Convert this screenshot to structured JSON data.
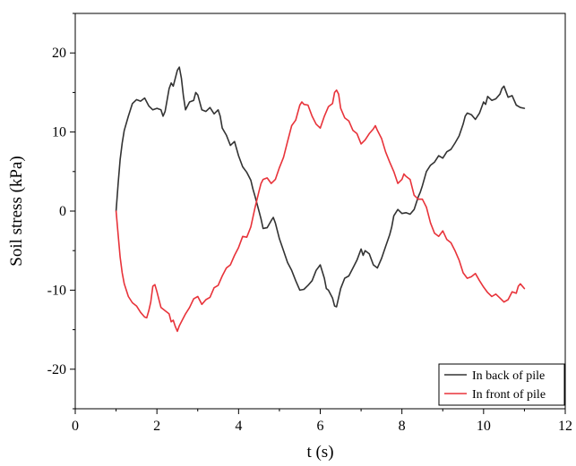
{
  "chart_data": {
    "type": "line",
    "xlabel": "t (s)",
    "ylabel": "Soil stress (kPa)",
    "xlim": [
      0,
      12
    ],
    "ylim": [
      -25,
      25
    ],
    "x_ticks": [
      "0",
      "2",
      "4",
      "6",
      "8",
      "10",
      "12"
    ],
    "y_ticks": [
      "-20",
      "-10",
      "0",
      "10",
      "20"
    ],
    "grid": false,
    "legend_position": "bottom-right",
    "series": [
      {
        "name": "In back of pile",
        "color": "#333333",
        "points": [
          [
            1.0,
            0.0
          ],
          [
            1.05,
            3.5
          ],
          [
            1.1,
            6.5
          ],
          [
            1.15,
            8.6
          ],
          [
            1.2,
            10.2
          ],
          [
            1.3,
            12.0
          ],
          [
            1.4,
            13.6
          ],
          [
            1.5,
            14.1
          ],
          [
            1.6,
            13.9
          ],
          [
            1.7,
            14.3
          ],
          [
            1.8,
            13.3
          ],
          [
            1.9,
            12.8
          ],
          [
            2.0,
            13.0
          ],
          [
            2.1,
            12.8
          ],
          [
            2.15,
            12.0
          ],
          [
            2.2,
            12.6
          ],
          [
            2.3,
            15.5
          ],
          [
            2.35,
            16.2
          ],
          [
            2.4,
            15.8
          ],
          [
            2.5,
            17.8
          ],
          [
            2.55,
            18.2
          ],
          [
            2.6,
            16.8
          ],
          [
            2.65,
            14.5
          ],
          [
            2.7,
            12.8
          ],
          [
            2.8,
            13.8
          ],
          [
            2.9,
            14.0
          ],
          [
            2.95,
            15.0
          ],
          [
            3.0,
            14.7
          ],
          [
            3.1,
            12.8
          ],
          [
            3.2,
            12.6
          ],
          [
            3.3,
            13.1
          ],
          [
            3.4,
            12.3
          ],
          [
            3.5,
            12.8
          ],
          [
            3.55,
            12.0
          ],
          [
            3.6,
            10.5
          ],
          [
            3.7,
            9.6
          ],
          [
            3.8,
            8.3
          ],
          [
            3.9,
            8.8
          ],
          [
            4.0,
            7.0
          ],
          [
            4.1,
            5.6
          ],
          [
            4.2,
            4.9
          ],
          [
            4.3,
            3.9
          ],
          [
            4.35,
            2.8
          ],
          [
            4.4,
            1.9
          ],
          [
            4.5,
            0.0
          ],
          [
            4.55,
            -1.0
          ],
          [
            4.6,
            -2.2
          ],
          [
            4.7,
            -2.1
          ],
          [
            4.8,
            -1.2
          ],
          [
            4.85,
            -0.8
          ],
          [
            4.9,
            -1.5
          ],
          [
            5.0,
            -3.5
          ],
          [
            5.1,
            -5.0
          ],
          [
            5.2,
            -6.5
          ],
          [
            5.3,
            -7.5
          ],
          [
            5.4,
            -8.8
          ],
          [
            5.5,
            -10.0
          ],
          [
            5.6,
            -9.9
          ],
          [
            5.7,
            -9.4
          ],
          [
            5.8,
            -8.8
          ],
          [
            5.9,
            -7.5
          ],
          [
            6.0,
            -6.8
          ],
          [
            6.1,
            -8.5
          ],
          [
            6.15,
            -9.8
          ],
          [
            6.2,
            -10.0
          ],
          [
            6.3,
            -11.0
          ],
          [
            6.35,
            -12.0
          ],
          [
            6.4,
            -12.1
          ],
          [
            6.5,
            -9.8
          ],
          [
            6.6,
            -8.5
          ],
          [
            6.7,
            -8.2
          ],
          [
            6.8,
            -7.2
          ],
          [
            6.9,
            -6.2
          ],
          [
            7.0,
            -4.8
          ],
          [
            7.05,
            -5.6
          ],
          [
            7.1,
            -5.0
          ],
          [
            7.2,
            -5.4
          ],
          [
            7.3,
            -6.8
          ],
          [
            7.4,
            -7.2
          ],
          [
            7.5,
            -6.0
          ],
          [
            7.6,
            -4.5
          ],
          [
            7.7,
            -3.0
          ],
          [
            7.75,
            -2.0
          ],
          [
            7.8,
            -0.6
          ],
          [
            7.9,
            0.2
          ],
          [
            8.0,
            -0.3
          ],
          [
            8.1,
            -0.2
          ],
          [
            8.2,
            -0.4
          ],
          [
            8.3,
            0.2
          ],
          [
            8.4,
            1.8
          ],
          [
            8.45,
            2.4
          ],
          [
            8.5,
            3.2
          ],
          [
            8.6,
            5.0
          ],
          [
            8.7,
            5.8
          ],
          [
            8.8,
            6.2
          ],
          [
            8.9,
            7.0
          ],
          [
            9.0,
            6.7
          ],
          [
            9.1,
            7.5
          ],
          [
            9.2,
            7.8
          ],
          [
            9.3,
            8.6
          ],
          [
            9.4,
            9.5
          ],
          [
            9.5,
            11.0
          ],
          [
            9.55,
            12.0
          ],
          [
            9.6,
            12.4
          ],
          [
            9.7,
            12.2
          ],
          [
            9.8,
            11.6
          ],
          [
            9.9,
            12.4
          ],
          [
            10.0,
            13.8
          ],
          [
            10.05,
            13.5
          ],
          [
            10.1,
            14.5
          ],
          [
            10.2,
            14.0
          ],
          [
            10.3,
            14.2
          ],
          [
            10.4,
            14.8
          ],
          [
            10.45,
            15.5
          ],
          [
            10.5,
            15.8
          ],
          [
            10.6,
            14.4
          ],
          [
            10.7,
            14.6
          ],
          [
            10.8,
            13.4
          ],
          [
            10.9,
            13.1
          ],
          [
            11.0,
            13.0
          ]
        ]
      },
      {
        "name": "In front of pile",
        "color": "#e8333a",
        "points": [
          [
            1.0,
            0.0
          ],
          [
            1.05,
            -3.0
          ],
          [
            1.1,
            -5.8
          ],
          [
            1.15,
            -7.8
          ],
          [
            1.2,
            -9.2
          ],
          [
            1.3,
            -10.8
          ],
          [
            1.4,
            -11.6
          ],
          [
            1.5,
            -12.0
          ],
          [
            1.6,
            -12.8
          ],
          [
            1.7,
            -13.4
          ],
          [
            1.75,
            -13.5
          ],
          [
            1.8,
            -12.6
          ],
          [
            1.85,
            -11.5
          ],
          [
            1.9,
            -9.5
          ],
          [
            1.95,
            -9.3
          ],
          [
            2.0,
            -10.2
          ],
          [
            2.1,
            -12.2
          ],
          [
            2.2,
            -12.6
          ],
          [
            2.3,
            -13.0
          ],
          [
            2.35,
            -14.0
          ],
          [
            2.4,
            -13.8
          ],
          [
            2.45,
            -14.6
          ],
          [
            2.5,
            -15.2
          ],
          [
            2.55,
            -14.5
          ],
          [
            2.6,
            -14.0
          ],
          [
            2.7,
            -13.0
          ],
          [
            2.8,
            -12.2
          ],
          [
            2.9,
            -11.1
          ],
          [
            3.0,
            -10.8
          ],
          [
            3.1,
            -11.8
          ],
          [
            3.2,
            -11.2
          ],
          [
            3.3,
            -10.9
          ],
          [
            3.4,
            -9.7
          ],
          [
            3.5,
            -9.4
          ],
          [
            3.6,
            -8.2
          ],
          [
            3.7,
            -7.2
          ],
          [
            3.8,
            -6.8
          ],
          [
            3.9,
            -5.6
          ],
          [
            4.0,
            -4.6
          ],
          [
            4.1,
            -3.2
          ],
          [
            4.2,
            -3.3
          ],
          [
            4.3,
            -2.0
          ],
          [
            4.4,
            0.4
          ],
          [
            4.5,
            2.5
          ],
          [
            4.55,
            3.5
          ],
          [
            4.6,
            4.0
          ],
          [
            4.7,
            4.2
          ],
          [
            4.8,
            3.5
          ],
          [
            4.9,
            4.0
          ],
          [
            5.0,
            5.5
          ],
          [
            5.1,
            6.8
          ],
          [
            5.2,
            8.8
          ],
          [
            5.3,
            10.8
          ],
          [
            5.4,
            11.5
          ],
          [
            5.5,
            13.4
          ],
          [
            5.55,
            13.8
          ],
          [
            5.6,
            13.5
          ],
          [
            5.7,
            13.4
          ],
          [
            5.8,
            12.0
          ],
          [
            5.9,
            11.0
          ],
          [
            6.0,
            10.5
          ],
          [
            6.1,
            12.0
          ],
          [
            6.2,
            13.2
          ],
          [
            6.3,
            13.6
          ],
          [
            6.35,
            15.0
          ],
          [
            6.4,
            15.3
          ],
          [
            6.45,
            14.8
          ],
          [
            6.5,
            13.0
          ],
          [
            6.6,
            11.8
          ],
          [
            6.7,
            11.4
          ],
          [
            6.8,
            10.2
          ],
          [
            6.9,
            9.8
          ],
          [
            7.0,
            8.5
          ],
          [
            7.1,
            9.0
          ],
          [
            7.2,
            9.8
          ],
          [
            7.3,
            10.4
          ],
          [
            7.35,
            10.8
          ],
          [
            7.4,
            10.2
          ],
          [
            7.5,
            9.2
          ],
          [
            7.6,
            7.5
          ],
          [
            7.7,
            6.2
          ],
          [
            7.8,
            5.0
          ],
          [
            7.9,
            3.5
          ],
          [
            8.0,
            4.0
          ],
          [
            8.05,
            4.7
          ],
          [
            8.1,
            4.4
          ],
          [
            8.2,
            4.0
          ],
          [
            8.3,
            2.0
          ],
          [
            8.4,
            1.5
          ],
          [
            8.5,
            1.5
          ],
          [
            8.6,
            0.5
          ],
          [
            8.7,
            -1.5
          ],
          [
            8.8,
            -2.8
          ],
          [
            8.9,
            -3.2
          ],
          [
            9.0,
            -2.5
          ],
          [
            9.1,
            -3.6
          ],
          [
            9.2,
            -4.0
          ],
          [
            9.3,
            -5.0
          ],
          [
            9.4,
            -6.2
          ],
          [
            9.5,
            -7.8
          ],
          [
            9.6,
            -8.5
          ],
          [
            9.7,
            -8.3
          ],
          [
            9.8,
            -7.9
          ],
          [
            9.9,
            -8.8
          ],
          [
            10.0,
            -9.6
          ],
          [
            10.1,
            -10.3
          ],
          [
            10.2,
            -10.8
          ],
          [
            10.3,
            -10.5
          ],
          [
            10.4,
            -11.0
          ],
          [
            10.5,
            -11.5
          ],
          [
            10.6,
            -11.2
          ],
          [
            10.7,
            -10.2
          ],
          [
            10.8,
            -10.4
          ],
          [
            10.85,
            -9.5
          ],
          [
            10.9,
            -9.2
          ],
          [
            11.0,
            -9.8
          ]
        ]
      }
    ]
  }
}
